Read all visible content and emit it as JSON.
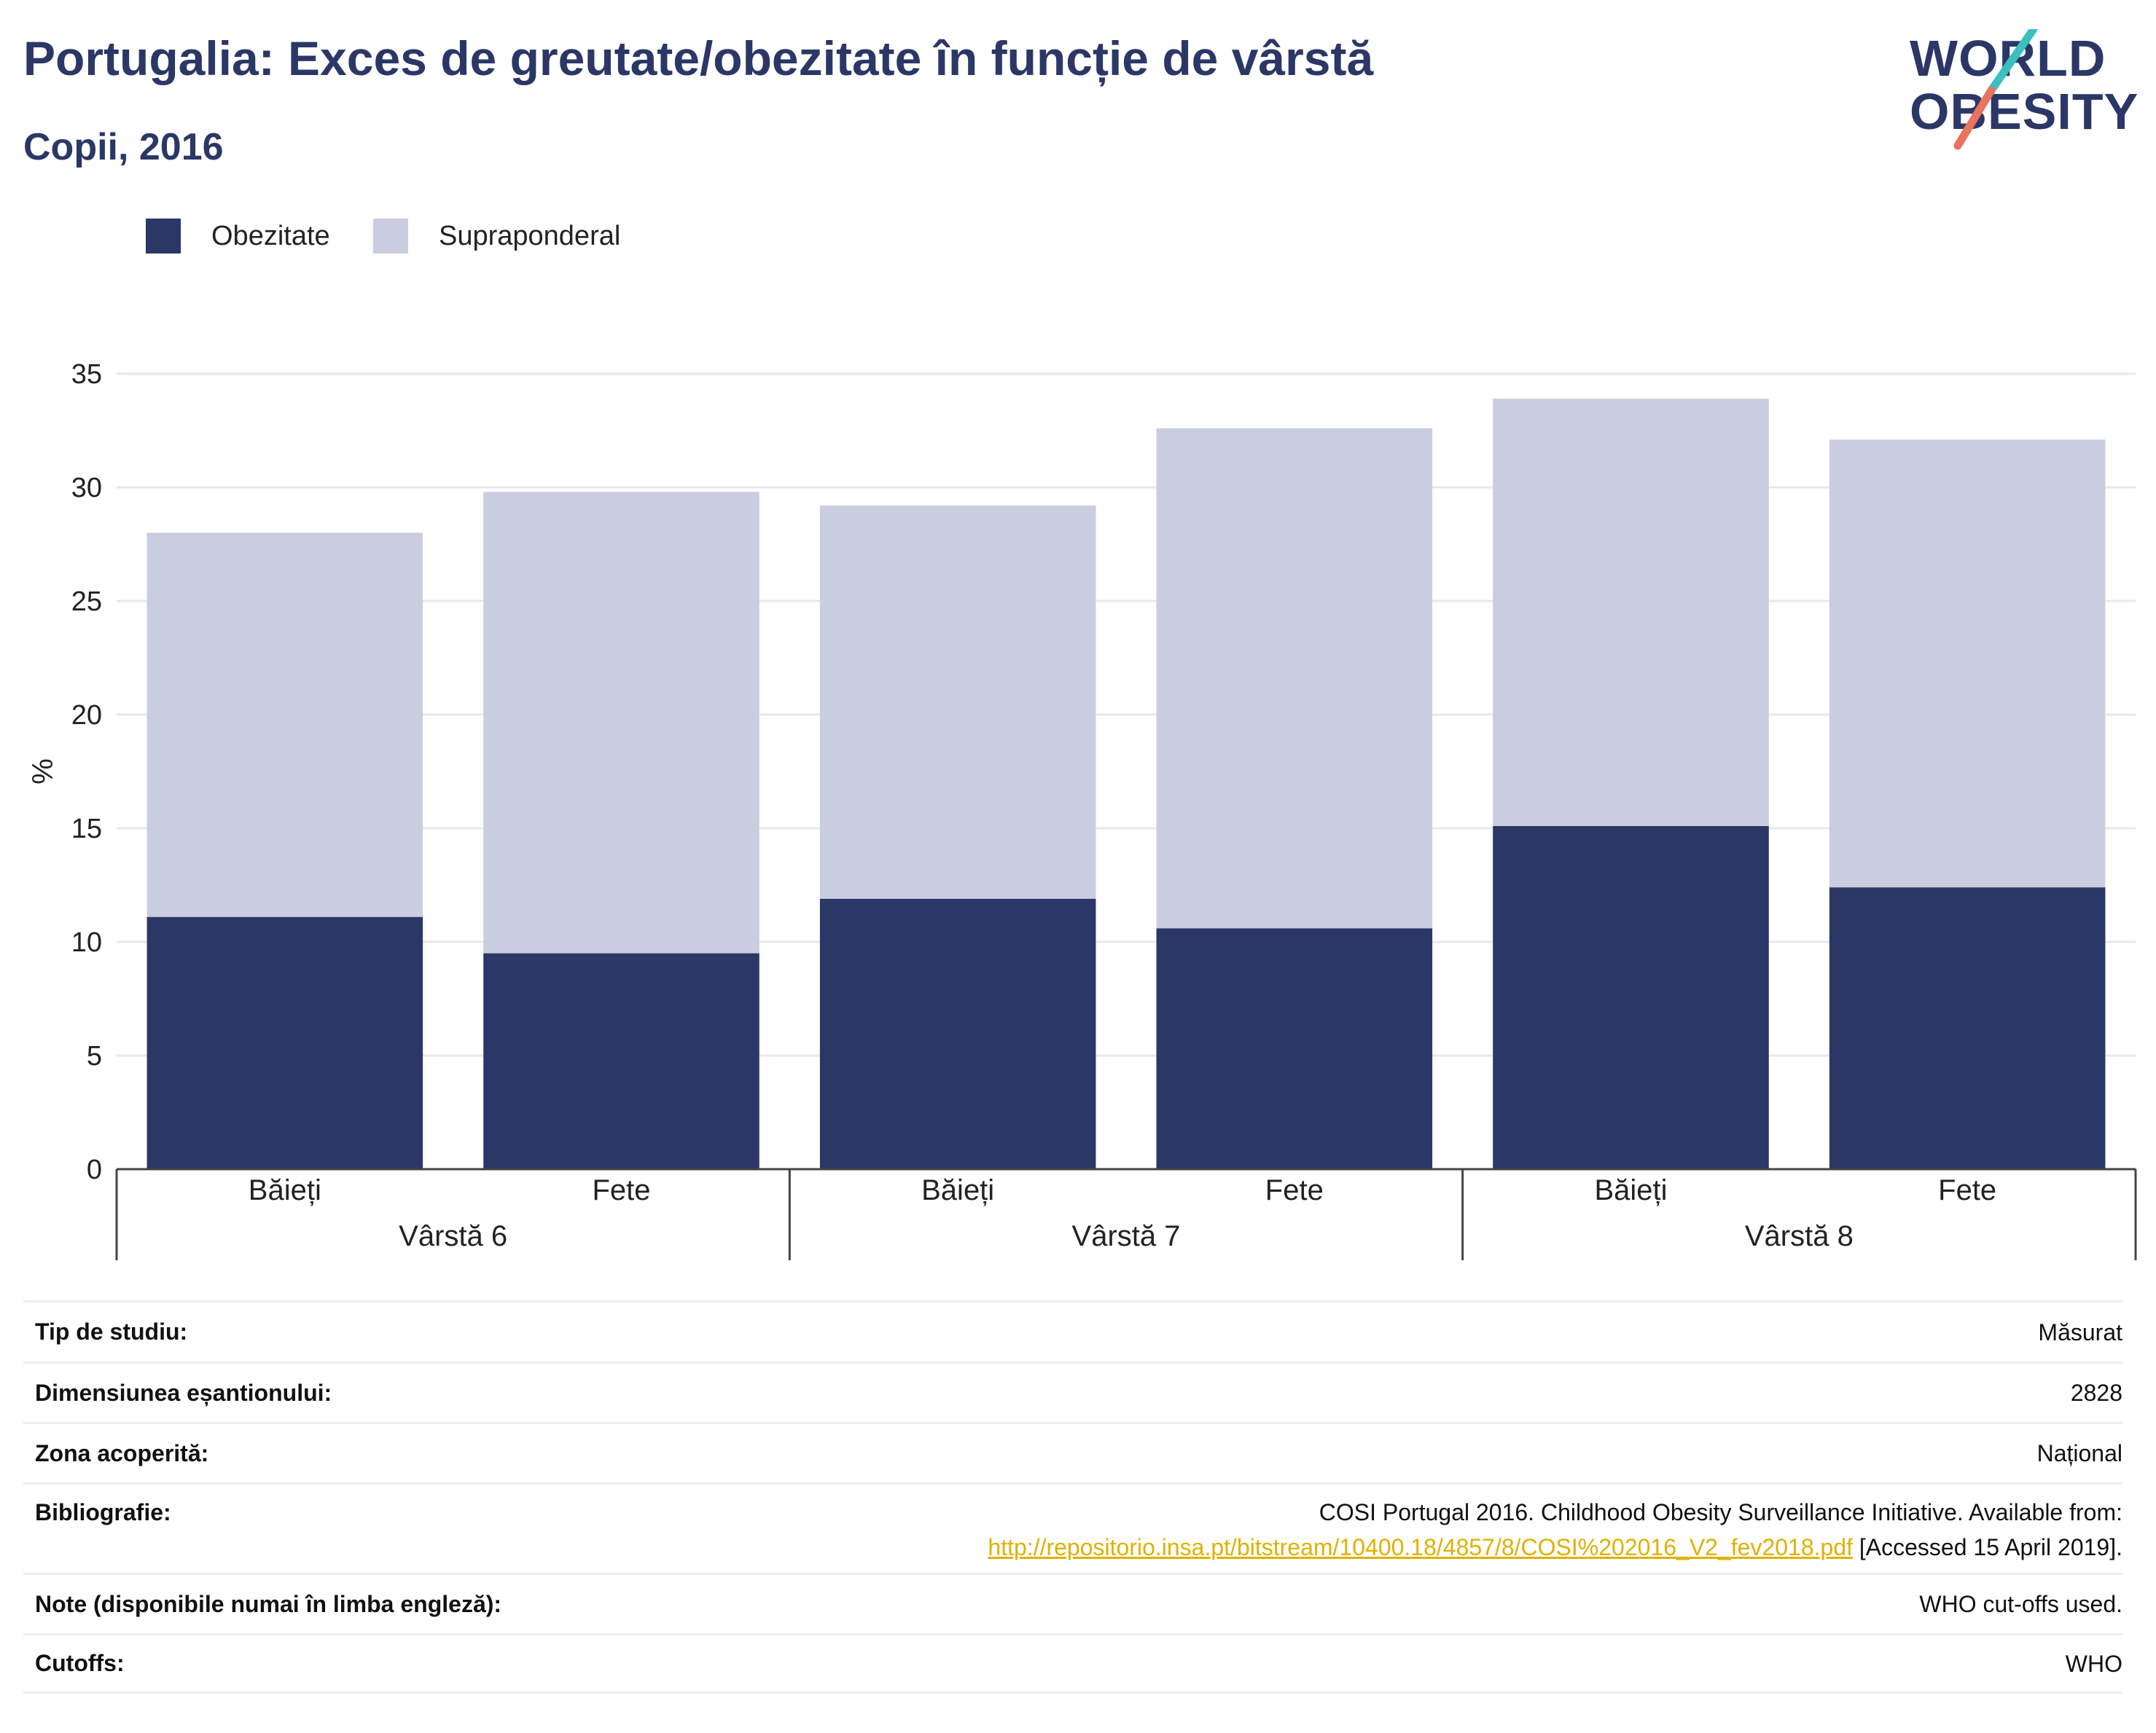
{
  "header": {
    "title": "Portugalia: Exces de greutate/obezitate în funcție de vârstă",
    "subtitle": "Copii, 2016"
  },
  "logo": {
    "line1": "WORLD",
    "line2": "OBESITY",
    "colors": {
      "teal": "#3bbfbf",
      "coral": "#e8735f",
      "navy": "#2b3766"
    }
  },
  "legend": [
    {
      "label": "Obezitate",
      "color": "#2b3766"
    },
    {
      "label": "Supraponderal",
      "color": "#cacce0"
    }
  ],
  "chart_data": {
    "type": "bar",
    "stacked": true,
    "ylabel": "%",
    "ylim": [
      0,
      35
    ],
    "yticks": [
      0,
      5,
      10,
      15,
      20,
      25,
      30,
      35
    ],
    "grid": true,
    "categories": [
      "Băieți",
      "Fete",
      "Băieți",
      "Fete",
      "Băieți",
      "Fete"
    ],
    "groups": [
      {
        "label": "Vârstă 6",
        "count": 2
      },
      {
        "label": "Vârstă 7",
        "count": 2
      },
      {
        "label": "Vârstă 8",
        "count": 2
      }
    ],
    "series": [
      {
        "name": "Obezitate",
        "color": "#2b3766",
        "values": [
          11.1,
          9.5,
          11.9,
          10.6,
          15.1,
          12.4
        ]
      },
      {
        "name": "Supraponderal",
        "color": "#cacce0",
        "values": [
          16.9,
          20.3,
          17.3,
          22.0,
          18.8,
          19.7
        ]
      }
    ]
  },
  "info": {
    "rows": [
      {
        "key": "Tip de studiu:",
        "value": "Măsurat"
      },
      {
        "key": "Dimensiunea eșantionului:",
        "value": "2828"
      },
      {
        "key": "Zona acoperită:",
        "value": "Național"
      },
      {
        "key": "Bibliografie:",
        "value_line1": "COSI Portugal 2016. Childhood Obesity Surveillance Initiative. Available from:",
        "link": "http://repositorio.insa.pt/bitstream/10400.18/4857/8/COSI%202016_V2_fev2018.pdf",
        "value_tail": " [Accessed 15 April 2019]."
      },
      {
        "key": "Note (disponibile numai în limba engleză):",
        "value": "WHO cut-offs used."
      },
      {
        "key": "Cutoffs:",
        "value": "WHO"
      }
    ]
  }
}
